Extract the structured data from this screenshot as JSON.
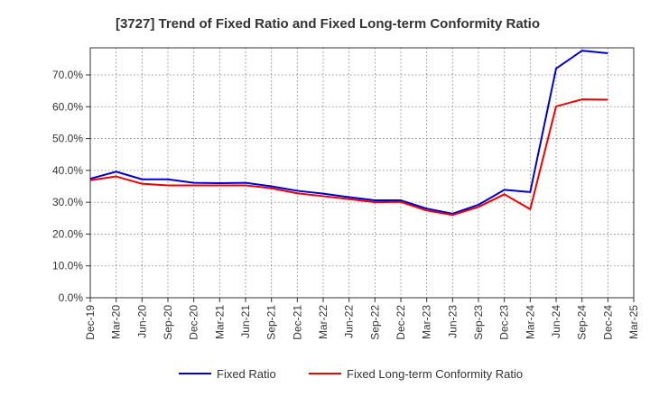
{
  "chart_data": {
    "type": "line",
    "title": "[3727]  Trend of Fixed Ratio and Fixed Long-term Conformity Ratio",
    "xlabel": "",
    "ylabel": "",
    "ylim": [
      0,
      78.5
    ],
    "y_tick_values": [
      0,
      10,
      20,
      30,
      40,
      50,
      60,
      70
    ],
    "y_tick_labels": [
      "0.0%",
      "10.0%",
      "20.0%",
      "30.0%",
      "40.0%",
      "50.0%",
      "60.0%",
      "70.0%"
    ],
    "categories": [
      "Dec-19",
      "Mar-20",
      "Jun-20",
      "Sep-20",
      "Dec-20",
      "Mar-21",
      "Jun-21",
      "Sep-21",
      "Dec-21",
      "Mar-22",
      "Jun-22",
      "Sep-22",
      "Dec-22",
      "Mar-23",
      "Jun-23",
      "Sep-23",
      "Dec-23",
      "Mar-24",
      "Jun-24",
      "Sep-24",
      "Dec-24",
      "Mar-25"
    ],
    "grid": true,
    "legend_position": "bottom",
    "series": [
      {
        "name": "Fixed Ratio",
        "color": "#0000cc",
        "values": [
          37.4,
          39.6,
          37.2,
          37.2,
          36.1,
          36.0,
          36.1,
          35.0,
          33.6,
          32.7,
          31.6,
          30.6,
          30.6,
          28.0,
          26.4,
          29.2,
          33.9,
          33.2,
          72.0,
          77.6,
          76.8,
          null
        ]
      },
      {
        "name": "Fixed Long-term Conformity Ratio",
        "color": "#ee0000",
        "values": [
          36.9,
          38.1,
          35.8,
          35.3,
          35.3,
          35.3,
          35.3,
          34.4,
          32.8,
          31.9,
          31.0,
          30.0,
          30.1,
          27.4,
          26.0,
          28.5,
          32.5,
          27.8,
          60.1,
          62.3,
          62.2,
          null
        ]
      }
    ]
  }
}
